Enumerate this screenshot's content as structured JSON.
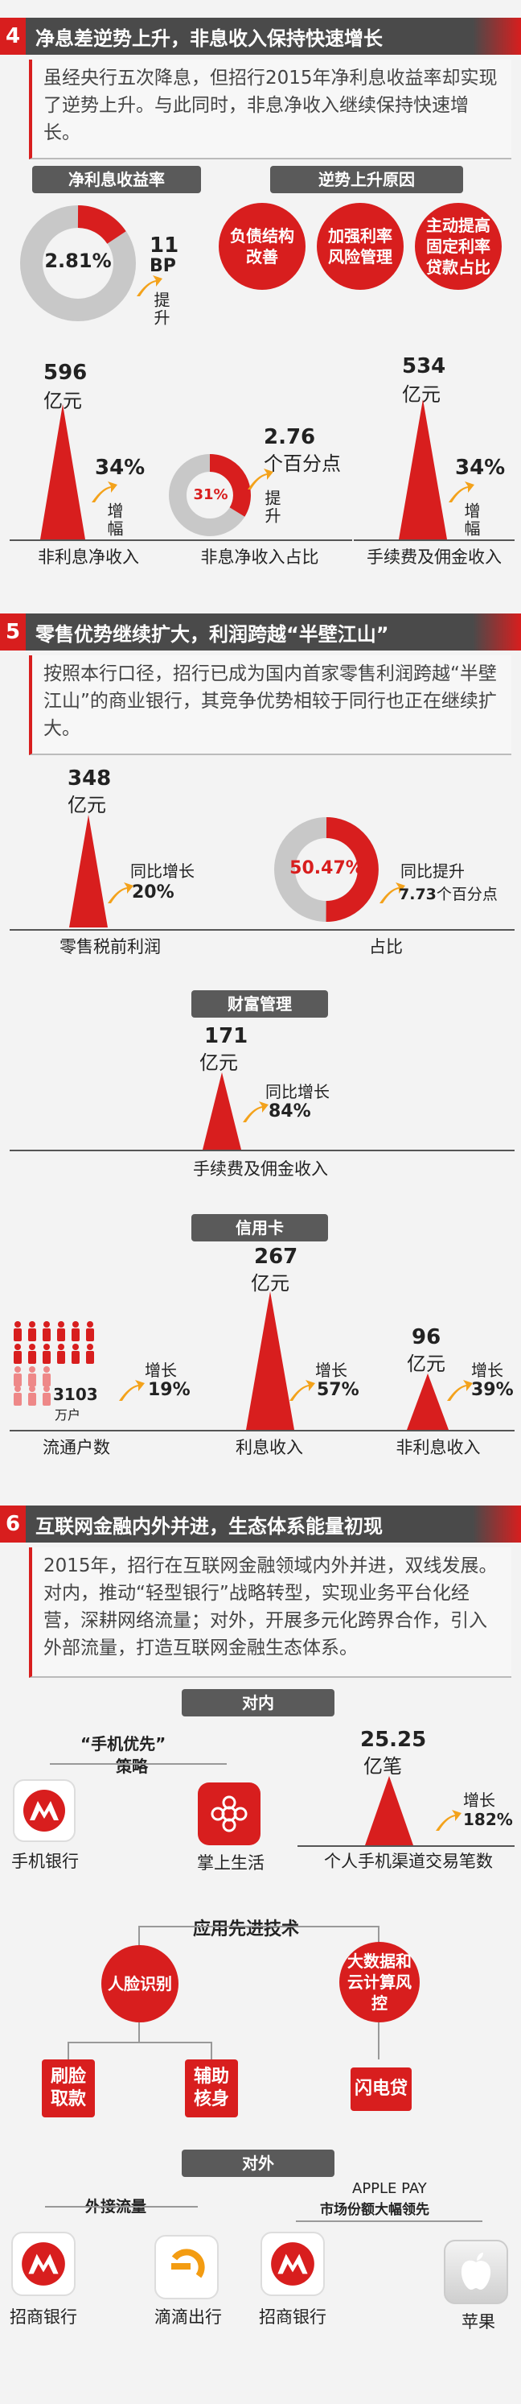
{
  "s4": {
    "num": "4",
    "title": "净息差逆势上升，非息收入保持快速增长",
    "para": "虽经央行五次降息，但招行2015年净利息收益率却实现了逆势上升。与此同时，非息净收入继续保持快速增长。",
    "nim_pill": "净利息收益率",
    "reason_pill": "逆势上升原因",
    "nim_value": "2.81%",
    "nim_change": "11",
    "nim_change_unit": "BP",
    "nim_change_dir": "提升",
    "reasons": [
      "负债结构改善",
      "加强利率风险管理",
      "主动提高固定利率贷款占比"
    ],
    "nonint_value": "596",
    "nonint_unit": "亿元",
    "nonint_growth": "34%",
    "nonint_growth_lbl": "增幅",
    "nonint_label": "非利息净收入",
    "share_value": "31%",
    "share_change": "2.76",
    "share_unit": "个百分点",
    "share_dir": "提升",
    "share_label": "非息净收入占比",
    "fee_value": "534",
    "fee_unit": "亿元",
    "fee_growth": "34%",
    "fee_growth_lbl": "增幅",
    "fee_label": "手续费及佣金收入"
  },
  "s5": {
    "num": "5",
    "title": "零售优势继续扩大，利润跨越“半壁江山”",
    "para": "按照本行口径，招行已成为国内首家零售利润跨越“半壁江山”的商业银行，其竞争优势相较于同行也正在继续扩大。",
    "profit_value": "348",
    "profit_unit": "亿元",
    "profit_growth_lbl": "同比增长",
    "profit_growth": "20%",
    "profit_label": "零售税前利润",
    "ratio_value": "50.47%",
    "ratio_lbl": "同比提升",
    "ratio_change": "7.73",
    "ratio_unit": "个百分点",
    "ratio_label": "占比",
    "wealth_pill": "财富管理",
    "wealth_value": "171",
    "wealth_unit": "亿元",
    "wealth_growth_lbl": "同比增长",
    "wealth_growth": "84%",
    "wealth_label": "手续费及佣金收入",
    "card_pill": "信用卡",
    "users_value": "3103",
    "users_unit": "万户",
    "users_growth_lbl": "增长",
    "users_growth": "19%",
    "users_label": "流通户数",
    "interest_value": "267",
    "interest_unit": "亿元",
    "interest_growth_lbl": "增长",
    "interest_growth": "57%",
    "interest_label": "利息收入",
    "nonint_value": "96",
    "nonint_unit": "亿元",
    "nonint_growth_lbl": "增长",
    "nonint_growth": "39%",
    "nonint_label": "非利息收入"
  },
  "s6": {
    "num": "6",
    "title": "互联网金融内外并进，生态体系能量初现",
    "para": "2015年，招行在互联网金融领域内外并进，双线发展。对内，推动“轻型银行”战略转型，实现业务平台化经营，深耕网络流量；对外，开展多元化跨界合作，引入外部流量，打造互联网金融生态体系。",
    "inner_pill": "对内",
    "mobile_first": "“手机优先”",
    "strategy": "策略",
    "app1": "手机银行",
    "app2": "掌上生活",
    "txn_value": "25.25",
    "txn_unit": "亿笔",
    "txn_growth_lbl": "增长",
    "txn_growth": "182%",
    "txn_label": "个人手机渠道交易笔数",
    "tech_title": "应用先进技术",
    "tech1": "人脸识别",
    "tech2": "大数据和云计算风控",
    "sub1": "刷脸取款",
    "sub2": "辅助核身",
    "sub3": "闪电贷",
    "outer_pill": "对外",
    "ext_flow": "外接流量",
    "applepay": "APPLE PAY",
    "applepay_sub": "市场份额大幅领先",
    "partner1": "招商银行",
    "partner2": "滴滴出行",
    "partner3": "招商银行",
    "partner4": "苹果"
  }
}
